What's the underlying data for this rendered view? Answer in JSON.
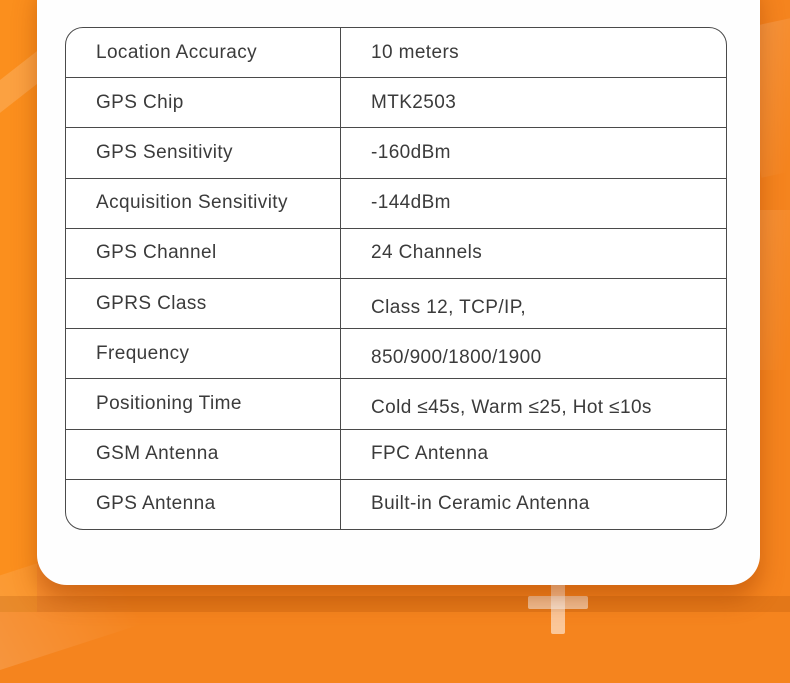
{
  "table": {
    "rows": [
      {
        "label": "Location Accuracy",
        "value": "10 meters"
      },
      {
        "label": "GPS Chip",
        "value": "MTK2503"
      },
      {
        "label": "GPS Sensitivity",
        "value": "-160dBm"
      },
      {
        "label": "Acquisition Sensitivity",
        "value": "-144dBm"
      },
      {
        "label": "GPS Channel",
        "value": "24 Channels"
      },
      {
        "label": "GPRS Class",
        "value": "Class 12, TCP/IP,"
      },
      {
        "label": "Frequency",
        "value": "850/900/1800/1900"
      },
      {
        "label": "Positioning Time",
        "value": "Cold ≤45s, Warm ≤25, Hot ≤10s"
      },
      {
        "label": "GSM Antenna",
        "value": "FPC Antenna"
      },
      {
        "label": "GPS Antenna",
        "value": "Built-in Ceramic Antenna"
      }
    ],
    "low_value_rows": [
      5,
      6,
      7
    ]
  },
  "icons": {
    "plus": "plus-icon"
  },
  "colors": {
    "background_orange": "#f5841e",
    "left_stripe_orange": "#fb8f1d",
    "card_white": "#fefefe",
    "table_border": "#4a4a4a",
    "text": "#3b3b3b",
    "shadow": "rgba(160,62,0,0.45)"
  }
}
